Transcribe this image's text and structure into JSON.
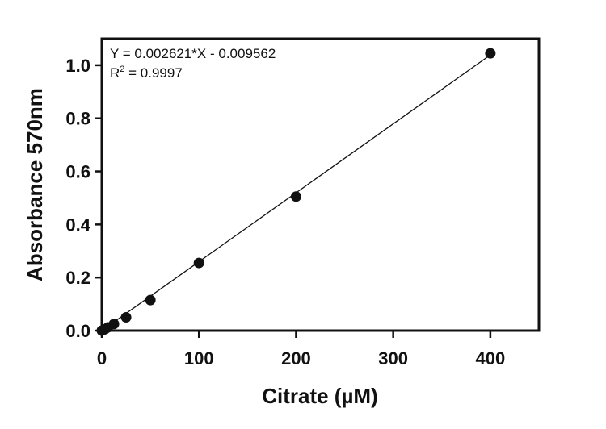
{
  "chart_data": {
    "type": "scatter",
    "xlabel": "Citrate (µM)",
    "ylabel": "Absorbance 570nm",
    "xlim": [
      0,
      450
    ],
    "ylim": [
      0,
      1.1
    ],
    "x_ticks": [
      0,
      100,
      200,
      300,
      400
    ],
    "x_tick_labels": [
      "0",
      "100",
      "200",
      "300",
      "400"
    ],
    "y_ticks": [
      0.0,
      0.2,
      0.4,
      0.6,
      0.8,
      1.0
    ],
    "y_tick_labels": [
      "0.0",
      "0.2",
      "0.4",
      "0.6",
      "0.8",
      "1.0"
    ],
    "grid": false,
    "series": [
      {
        "x": [
          0,
          3.125,
          6.25,
          12.5,
          25,
          50,
          100,
          200,
          400
        ],
        "y": [
          0.0,
          0.005,
          0.012,
          0.025,
          0.05,
          0.115,
          0.255,
          0.505,
          1.045
        ]
      }
    ],
    "fit_line": {
      "slope": 0.002621,
      "intercept": -0.009562,
      "x_range": [
        0,
        400
      ]
    },
    "annotations": {
      "equation": "Y = 0.002621*X - 0.009562",
      "r2_prefix": "R",
      "r2_sup": "2",
      "r2_suffix": " = 0.9997"
    }
  }
}
